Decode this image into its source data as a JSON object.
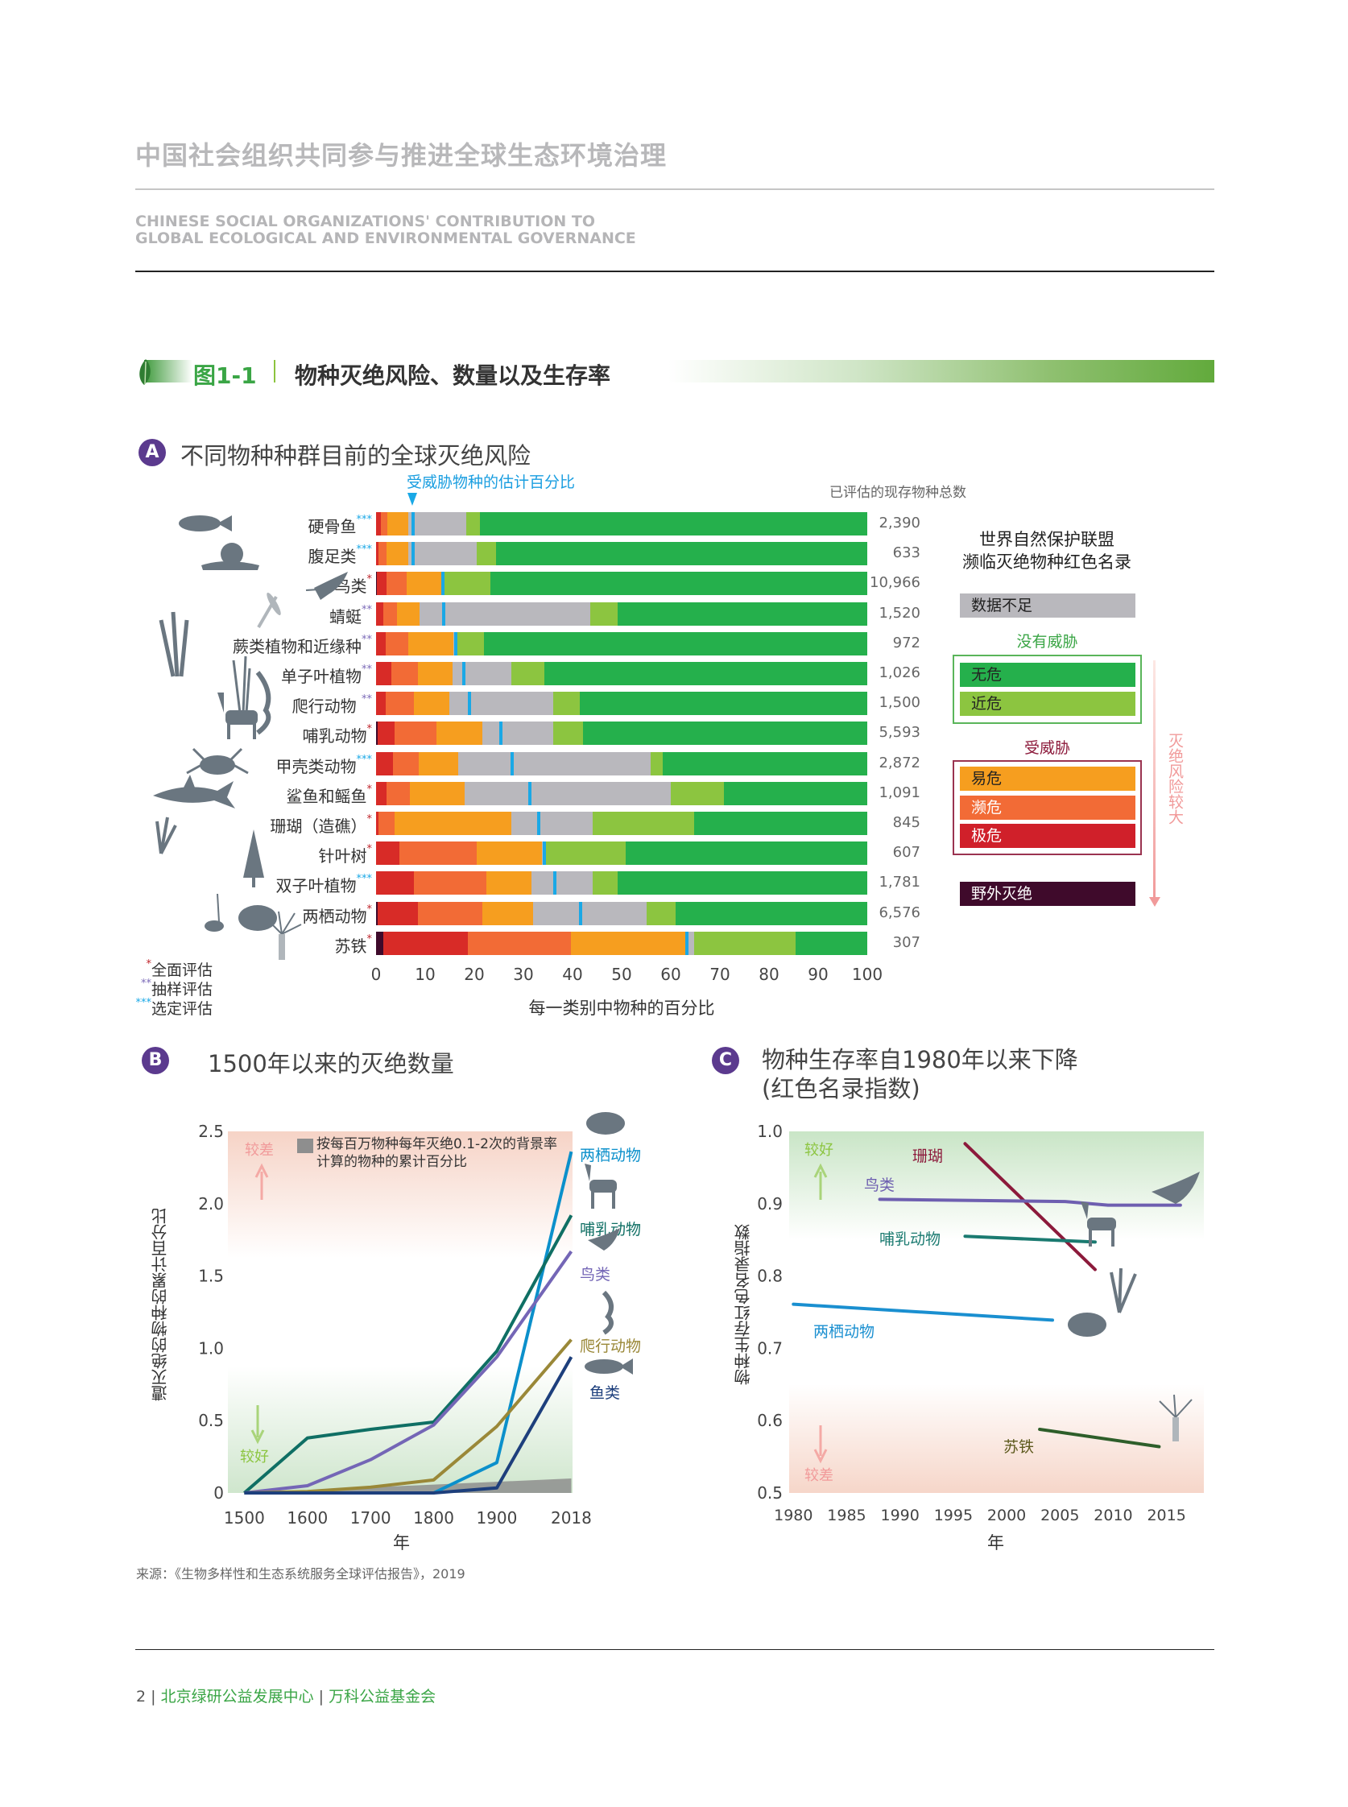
{
  "header": {
    "title_cn": "中国社会组织共同参与推进全球生态环境治理",
    "title_en_1": "CHINESE SOCIAL ORGANIZATIONS' CONTRIBUTION TO",
    "title_en_2": "GLOBAL ECOLOGICAL AND ENVIRONMENTAL GOVERNANCE"
  },
  "figure": {
    "number": "图1-1",
    "title": "物种灭绝风险、数量以及生存率"
  },
  "colors": {
    "EX": "#3f0a2b",
    "CR": "#d82b27",
    "EN": "#f26b36",
    "VU": "#f69e1f",
    "DD": "#b9b8bd",
    "NT": "#8cc540",
    "LC": "#25b04c",
    "marker": "#1aa8e6"
  },
  "chart_data": [
    {
      "type": "bar",
      "badge": "A",
      "title": "不同物种种群目前的全球灭绝风险",
      "marker_label": "受威胁物种的估计百分比",
      "count_header": "已评估的现存物种总数",
      "xlabel": "每一类别中物种的百分比",
      "xlim": [
        0,
        100
      ],
      "xticks": [
        "0",
        "10",
        "20",
        "30",
        "40",
        "50",
        "60",
        "70",
        "80",
        "90",
        "100"
      ],
      "stacking_order": [
        "EX",
        "CR",
        "EN",
        "VU",
        "DD",
        "NT",
        "LC"
      ],
      "rows": [
        {
          "label": "硬骨鱼",
          "stars": "***",
          "count": "2,390",
          "EX": 0,
          "CR": 1.0,
          "EN": 1.3,
          "VU": 4.3,
          "DD": 11.8,
          "NT": 2.8,
          "LC": 78.8,
          "threatened_estimate": 7.5
        },
        {
          "label": "腹足类",
          "stars": "***",
          "count": "633",
          "EX": 0,
          "CR": 0.5,
          "EN": 1.7,
          "VU": 4.4,
          "DD": 13.9,
          "NT": 4.0,
          "LC": 75.5,
          "threatened_estimate": 7.5
        },
        {
          "label": "鸟类",
          "stars": "*",
          "count": "10,966",
          "EX": 0.2,
          "CR": 2.0,
          "EN": 4.1,
          "VU": 7.0,
          "DD": 0.5,
          "NT": 9.5,
          "LC": 76.7,
          "threatened_estimate": 13.6
        },
        {
          "label": "蜻蜓",
          "stars": "**",
          "count": "1,520",
          "EX": 0,
          "CR": 1.5,
          "EN": 2.8,
          "VU": 4.5,
          "DD": 34.8,
          "NT": 5.6,
          "LC": 50.8,
          "threatened_estimate": 13.8
        },
        {
          "label": "蕨类植物和近缘种",
          "stars": "**",
          "count": "972",
          "EX": 0,
          "CR": 1.9,
          "EN": 4.7,
          "VU": 9.2,
          "DD": 0.7,
          "NT": 5.4,
          "LC": 78.1,
          "threatened_estimate": 16.2
        },
        {
          "label": "单子叶植物",
          "stars": "**",
          "count": "1,026",
          "EX": 0,
          "CR": 3.1,
          "EN": 5.5,
          "VU": 6.9,
          "DD": 12.1,
          "NT": 6.6,
          "LC": 65.8,
          "threatened_estimate": 17.8
        },
        {
          "label": "爬行动物 ",
          "stars": "**",
          "count": "1,500",
          "EX": 0,
          "CR": 1.9,
          "EN": 5.8,
          "VU": 7.2,
          "DD": 21.2,
          "NT": 5.3,
          "LC": 58.6,
          "threatened_estimate": 19.0
        },
        {
          "label": "哺乳动物",
          "stars": "*",
          "count": "5,593",
          "EX": 0.3,
          "CR": 3.5,
          "EN": 8.5,
          "VU": 9.3,
          "DD": 14.5,
          "NT": 6.0,
          "LC": 57.9,
          "threatened_estimate": 25.4
        },
        {
          "label": "甲壳类动物",
          "stars": "***",
          "count": "2,872",
          "EX": 0,
          "CR": 3.4,
          "EN": 5.3,
          "VU": 8.0,
          "DD": 39.2,
          "NT": 2.5,
          "LC": 41.6,
          "threatened_estimate": 27.7
        },
        {
          "label": "鲨鱼和鳐鱼",
          "stars": "*",
          "count": "1,091",
          "EX": 0,
          "CR": 2.2,
          "EN": 4.7,
          "VU": 11.1,
          "DD": 42.0,
          "NT": 10.8,
          "LC": 29.2,
          "threatened_estimate": 31.3
        },
        {
          "label": "珊瑚（造礁）",
          "stars": "*",
          "count": "845",
          "EX": 0,
          "CR": 0.5,
          "EN": 3.2,
          "VU": 23.9,
          "DD": 16.5,
          "NT": 20.7,
          "LC": 35.2,
          "threatened_estimate": 33.1
        },
        {
          "label": "针叶树",
          "stars": "*",
          "count": "607",
          "EX": 0,
          "CR": 4.8,
          "EN": 15.7,
          "VU": 13.3,
          "DD": 0.8,
          "NT": 16.2,
          "LC": 49.2,
          "threatened_estimate": 34.2
        },
        {
          "label": "双子叶植物",
          "stars": "***",
          "count": "1,781",
          "EX": 0,
          "CR": 7.7,
          "EN": 14.7,
          "VU": 9.2,
          "DD": 12.5,
          "NT": 5.1,
          "LC": 50.8,
          "threatened_estimate": 36.4
        },
        {
          "label": "两栖动物",
          "stars": "*",
          "count": "6,576",
          "EX": 0.3,
          "CR": 8.3,
          "EN": 13.0,
          "VU": 10.4,
          "DD": 23.1,
          "NT": 5.9,
          "LC": 39.0,
          "threatened_estimate": 41.7
        },
        {
          "label": "苏铁",
          "stars": "*",
          "count": "307",
          "EX": 1.4,
          "CR": 17.3,
          "EN": 21.0,
          "VU": 23.3,
          "DD": 1.8,
          "NT": 20.6,
          "LC": 14.6,
          "threatened_estimate": 63.3
        }
      ],
      "star_legend": [
        {
          "stars": "*",
          "label": "全面评估"
        },
        {
          "stars": "**",
          "label": "抽样评估"
        },
        {
          "stars": "***",
          "label": "选定评估"
        }
      ],
      "legend": {
        "title_1": "世界自然保护联盟",
        "title_2": "濒临灭绝物种红色名录",
        "dd": "数据不足",
        "not_threatened": "没有威胁",
        "lc": "无危",
        "nt": "近危",
        "threatened": "受威胁",
        "vu": "易危",
        "en": "濒危",
        "cr": "极危",
        "ex": "野外灭绝",
        "risk_arrow": "灭绝风险较大"
      }
    },
    {
      "type": "line",
      "badge": "B",
      "title": "1500年以来的灭绝数量",
      "xlabel": "年",
      "ylabel": "遭灭绝的物种的累计百分比",
      "ylim": [
        0,
        2.5
      ],
      "xticks": [
        "1500",
        "1600",
        "1700",
        "1800",
        "1900",
        "2018"
      ],
      "yticks": [
        "0",
        "0.5",
        "1.0",
        "1.5",
        "2.0",
        "2.5"
      ],
      "worse_label": "较差",
      "better_label": "较好",
      "background_label": "按每百万物种每年灭绝0.1-2次的背景率计算的物种的累计百分比",
      "background_band": {
        "x": [
          1500,
          2018
        ],
        "upper": [
          0.0,
          0.1
        ]
      },
      "x": [
        1500,
        1600,
        1700,
        1800,
        1900,
        2018
      ],
      "series": [
        {
          "name": "两栖动物",
          "color": "#0b90cb",
          "values": [
            0,
            0,
            0,
            0,
            0.21,
            2.36
          ]
        },
        {
          "name": "哺乳动物",
          "color": "#0f6f64",
          "values": [
            0,
            0.38,
            0.44,
            0.49,
            0.98,
            1.92
          ]
        },
        {
          "name": "鸟类",
          "color": "#7466b6",
          "values": [
            0,
            0.05,
            0.23,
            0.47,
            0.94,
            1.67
          ]
        },
        {
          "name": "爬行动物",
          "color": "#9a8838",
          "values": [
            0,
            0.01,
            0.04,
            0.09,
            0.46,
            1.06
          ]
        },
        {
          "name": "鱼类",
          "color": "#1d3f7c",
          "values": [
            0,
            0,
            0,
            0,
            0.035,
            0.94
          ]
        }
      ]
    },
    {
      "type": "line",
      "badge": "C",
      "title_1": "物种生存率自1980年以来下降",
      "title_2": "(红色名录指数)",
      "xlabel": "年",
      "ylabel": "物种生存红色名录指数",
      "ylim": [
        0.5,
        1.0
      ],
      "xticks": [
        "1980",
        "1985",
        "1990",
        "1995",
        "2000",
        "2005",
        "2010",
        "2015"
      ],
      "yticks": [
        "0.5",
        "0.6",
        "0.7",
        "0.8",
        "0.9",
        "1.0"
      ],
      "better_label": "较好",
      "worse_label": "较差",
      "series": [
        {
          "name": "珊瑚",
          "color": "#8c1a3b",
          "points": [
            [
              1996.1,
              0.983
            ],
            [
              2008.3,
              0.809
            ]
          ]
        },
        {
          "name": "鸟类",
          "color": "#6e5fb0",
          "points": [
            [
              1988.1,
              0.906
            ],
            [
              2005.5,
              0.903
            ],
            [
              2009.5,
              0.898
            ],
            [
              2016.3,
              0.898
            ]
          ]
        },
        {
          "name": "哺乳动物",
          "color": "#1a7a70",
          "points": [
            [
              1996.1,
              0.855
            ],
            [
              2008.3,
              0.847
            ]
          ]
        },
        {
          "name": "两栖动物",
          "color": "#1a8fd0",
          "points": [
            [
              1980,
              0.761
            ],
            [
              2004.3,
              0.739
            ]
          ]
        },
        {
          "name": "苏铁",
          "color": "#2e5e2a",
          "points": [
            [
              2003.1,
              0.588
            ],
            [
              2014.3,
              0.564
            ]
          ]
        }
      ]
    }
  ],
  "source": "来源：《生物多样性和生态系统服务全球评估报告》，2019",
  "footer": {
    "page": "2",
    "org1": "北京绿研公益发展中心",
    "org2": "万科公益基金会"
  }
}
